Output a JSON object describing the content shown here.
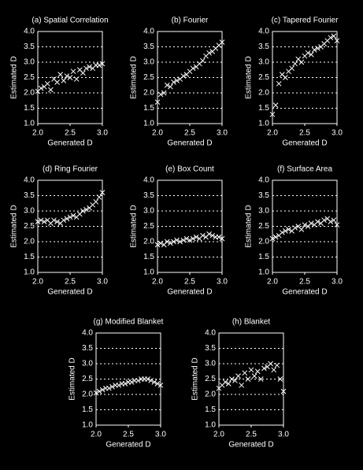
{
  "chart_data": [
    {
      "type": "scatter",
      "title": "(a) Spatial Correlation",
      "xlabel": "Generated D",
      "ylabel": "Estimated D",
      "color": "#ffffff",
      "grid": true,
      "xlim": [
        2,
        3
      ],
      "ylim": [
        1,
        4
      ],
      "xticks": [
        {
          "value": 2,
          "label": "2.0"
        },
        2.5,
        {
          "value": 3,
          "label": "3.0"
        }
      ],
      "yticks": [
        {
          "value": 1,
          "label": "1.0"
        },
        1.5,
        {
          "value": 2,
          "label": "2.0"
        },
        2.5,
        {
          "value": 3,
          "label": "3.0"
        },
        3.5,
        {
          "value": 4,
          "label": "4.0"
        }
      ],
      "x": [
        2.0,
        2.05,
        2.1,
        2.15,
        2.2,
        2.25,
        2.3,
        2.35,
        2.4,
        2.45,
        2.5,
        2.55,
        2.6,
        2.65,
        2.7,
        2.75,
        2.8,
        2.85,
        2.9,
        2.95,
        3.0
      ],
      "values": [
        2.05,
        2.15,
        2.2,
        2.3,
        2.1,
        2.45,
        2.35,
        2.6,
        2.4,
        2.55,
        2.5,
        2.7,
        2.45,
        2.75,
        2.65,
        2.8,
        2.85,
        2.8,
        2.9,
        2.9,
        2.95
      ]
    },
    {
      "type": "scatter",
      "title": "(b) Fourier",
      "xlabel": "Generated D",
      "ylabel": "Estimated D",
      "color": "#ffffff",
      "grid": true,
      "xlim": [
        2,
        3
      ],
      "ylim": [
        1,
        4
      ],
      "xticks": [
        {
          "value": 2,
          "label": "2.0"
        },
        2.5,
        {
          "value": 3,
          "label": "3.0"
        }
      ],
      "yticks": [
        {
          "value": 1,
          "label": "1.0"
        },
        1.5,
        {
          "value": 2,
          "label": "2.0"
        },
        2.5,
        {
          "value": 3,
          "label": "3.0"
        },
        3.5,
        {
          "value": 4,
          "label": "4.0"
        }
      ],
      "x": [
        2.0,
        2.05,
        2.1,
        2.15,
        2.2,
        2.25,
        2.3,
        2.35,
        2.4,
        2.45,
        2.5,
        2.55,
        2.6,
        2.65,
        2.7,
        2.75,
        2.8,
        2.85,
        2.9,
        2.95,
        3.0
      ],
      "values": [
        1.7,
        1.95,
        2.0,
        2.25,
        2.2,
        2.35,
        2.4,
        2.45,
        2.55,
        2.6,
        2.7,
        2.8,
        2.85,
        2.95,
        3.05,
        3.2,
        3.3,
        3.35,
        3.45,
        3.55,
        3.65
      ]
    },
    {
      "type": "scatter",
      "title": "(c) Tapered Fourier",
      "xlabel": "Generated D",
      "ylabel": "Estimated D",
      "color": "#ffffff",
      "grid": true,
      "xlim": [
        2,
        3
      ],
      "ylim": [
        1,
        4
      ],
      "xticks": [
        {
          "value": 2,
          "label": "2.0"
        },
        2.5,
        {
          "value": 3,
          "label": "3.0"
        }
      ],
      "yticks": [
        {
          "value": 1,
          "label": "1.0"
        },
        1.5,
        {
          "value": 2,
          "label": "2.0"
        },
        2.5,
        {
          "value": 3,
          "label": "3.0"
        },
        3.5,
        {
          "value": 4,
          "label": "4.0"
        }
      ],
      "x": [
        2.0,
        2.05,
        2.1,
        2.15,
        2.2,
        2.25,
        2.3,
        2.35,
        2.4,
        2.45,
        2.5,
        2.55,
        2.6,
        2.65,
        2.7,
        2.75,
        2.8,
        2.85,
        2.9,
        2.95,
        3.0
      ],
      "values": [
        1.3,
        1.6,
        2.3,
        2.6,
        2.5,
        2.7,
        2.8,
        2.95,
        3.1,
        3.0,
        3.2,
        3.3,
        3.25,
        3.4,
        3.45,
        3.5,
        3.6,
        3.7,
        3.8,
        3.85,
        3.7
      ]
    },
    {
      "type": "scatter",
      "title": "(d) Ring Fourier",
      "xlabel": "Generated D",
      "ylabel": "Estimated D",
      "color": "#ffffff",
      "grid": true,
      "xlim": [
        2,
        3
      ],
      "ylim": [
        1,
        4
      ],
      "xticks": [
        {
          "value": 2,
          "label": "2.0"
        },
        2.5,
        {
          "value": 3,
          "label": "3.0"
        }
      ],
      "yticks": [
        {
          "value": 1,
          "label": "1.0"
        },
        1.5,
        {
          "value": 2,
          "label": "2.0"
        },
        2.5,
        {
          "value": 3,
          "label": "3.0"
        },
        3.5,
        {
          "value": 4,
          "label": "4.0"
        }
      ],
      "x": [
        2.0,
        2.05,
        2.1,
        2.15,
        2.2,
        2.25,
        2.3,
        2.35,
        2.4,
        2.45,
        2.5,
        2.55,
        2.6,
        2.65,
        2.7,
        2.75,
        2.8,
        2.85,
        2.9,
        2.95,
        3.0
      ],
      "values": [
        2.65,
        2.7,
        2.65,
        2.7,
        2.6,
        2.7,
        2.65,
        2.6,
        2.7,
        2.75,
        2.8,
        2.85,
        2.8,
        2.9,
        3.0,
        3.05,
        3.1,
        3.2,
        3.3,
        3.45,
        3.6
      ]
    },
    {
      "type": "scatter",
      "title": "(e) Box Count",
      "xlabel": "Generated D",
      "ylabel": "Estimated D",
      "color": "#ffffff",
      "grid": true,
      "xlim": [
        2,
        3
      ],
      "ylim": [
        1,
        4
      ],
      "xticks": [
        {
          "value": 2,
          "label": "2.0"
        },
        2.5,
        {
          "value": 3,
          "label": "3.0"
        }
      ],
      "yticks": [
        {
          "value": 1,
          "label": "1.0"
        },
        1.5,
        {
          "value": 2,
          "label": "2.0"
        },
        2.5,
        {
          "value": 3,
          "label": "3.0"
        },
        3.5,
        {
          "value": 4,
          "label": "4.0"
        }
      ],
      "x": [
        2.0,
        2.05,
        2.1,
        2.15,
        2.2,
        2.25,
        2.3,
        2.35,
        2.4,
        2.45,
        2.5,
        2.55,
        2.6,
        2.65,
        2.7,
        2.75,
        2.8,
        2.85,
        2.9,
        2.95,
        3.0
      ],
      "values": [
        1.9,
        1.95,
        1.9,
        2.0,
        1.95,
        2.0,
        2.05,
        2.0,
        2.05,
        2.1,
        2.05,
        2.1,
        2.15,
        2.1,
        2.2,
        2.15,
        2.25,
        2.2,
        2.15,
        2.15,
        2.1
      ]
    },
    {
      "type": "scatter",
      "title": "(f) Surface Area",
      "xlabel": "Generated D",
      "ylabel": "Estimated D",
      "color": "#ffffff",
      "grid": true,
      "xlim": [
        2,
        3
      ],
      "ylim": [
        1,
        4
      ],
      "xticks": [
        {
          "value": 2,
          "label": "2.0"
        },
        2.5,
        {
          "value": 3,
          "label": "3.0"
        }
      ],
      "yticks": [
        {
          "value": 1,
          "label": "1.0"
        },
        1.5,
        {
          "value": 2,
          "label": "2.0"
        },
        2.5,
        {
          "value": 3,
          "label": "3.0"
        },
        3.5,
        {
          "value": 4,
          "label": "4.0"
        }
      ],
      "x": [
        2.0,
        2.05,
        2.1,
        2.15,
        2.2,
        2.25,
        2.3,
        2.35,
        2.4,
        2.45,
        2.5,
        2.55,
        2.6,
        2.65,
        2.7,
        2.75,
        2.8,
        2.85,
        2.9,
        2.95,
        3.0
      ],
      "values": [
        2.1,
        2.15,
        2.2,
        2.3,
        2.35,
        2.4,
        2.35,
        2.45,
        2.5,
        2.4,
        2.55,
        2.5,
        2.6,
        2.55,
        2.65,
        2.6,
        2.7,
        2.75,
        2.65,
        2.7,
        2.55
      ]
    },
    {
      "type": "scatter",
      "title": "(g) Modified Blanket",
      "xlabel": "Generated D",
      "ylabel": "Estimated D",
      "color": "#ffffff",
      "grid": true,
      "xlim": [
        2,
        3
      ],
      "ylim": [
        1,
        4
      ],
      "xticks": [
        {
          "value": 2,
          "label": "2.0"
        },
        2.5,
        {
          "value": 3,
          "label": "3.0"
        }
      ],
      "yticks": [
        {
          "value": 1,
          "label": "1.0"
        },
        1.5,
        {
          "value": 2,
          "label": "2.0"
        },
        2.5,
        {
          "value": 3,
          "label": "3.0"
        },
        3.5,
        {
          "value": 4,
          "label": "4.0"
        }
      ],
      "x": [
        2.0,
        2.05,
        2.1,
        2.15,
        2.2,
        2.25,
        2.3,
        2.35,
        2.4,
        2.45,
        2.5,
        2.55,
        2.6,
        2.65,
        2.7,
        2.75,
        2.8,
        2.85,
        2.9,
        2.95,
        3.0
      ],
      "values": [
        2.05,
        2.1,
        2.15,
        2.2,
        2.2,
        2.25,
        2.3,
        2.3,
        2.35,
        2.35,
        2.4,
        2.4,
        2.45,
        2.45,
        2.5,
        2.5,
        2.5,
        2.45,
        2.4,
        2.35,
        2.3
      ]
    },
    {
      "type": "scatter",
      "title": "(h) Blanket",
      "xlabel": "Generated D",
      "ylabel": "Estimated D",
      "color": "#ffffff",
      "grid": true,
      "xlim": [
        2,
        3
      ],
      "ylim": [
        1,
        4
      ],
      "xticks": [
        {
          "value": 2,
          "label": "2.0"
        },
        2.5,
        {
          "value": 3,
          "label": "3.0"
        }
      ],
      "yticks": [
        {
          "value": 1,
          "label": "1.0"
        },
        1.5,
        {
          "value": 2,
          "label": "2.0"
        },
        2.5,
        {
          "value": 3,
          "label": "3.0"
        },
        3.5,
        {
          "value": 4,
          "label": "4.0"
        }
      ],
      "x": [
        2.0,
        2.05,
        2.1,
        2.15,
        2.2,
        2.25,
        2.3,
        2.35,
        2.4,
        2.45,
        2.5,
        2.55,
        2.6,
        2.65,
        2.7,
        2.75,
        2.8,
        2.85,
        2.9,
        2.95,
        3.0
      ],
      "values": [
        2.2,
        2.3,
        2.4,
        2.35,
        2.5,
        2.45,
        2.6,
        2.3,
        2.7,
        2.5,
        2.8,
        2.6,
        2.75,
        2.5,
        2.85,
        2.9,
        3.0,
        2.8,
        2.95,
        2.5,
        2.1
      ]
    }
  ]
}
